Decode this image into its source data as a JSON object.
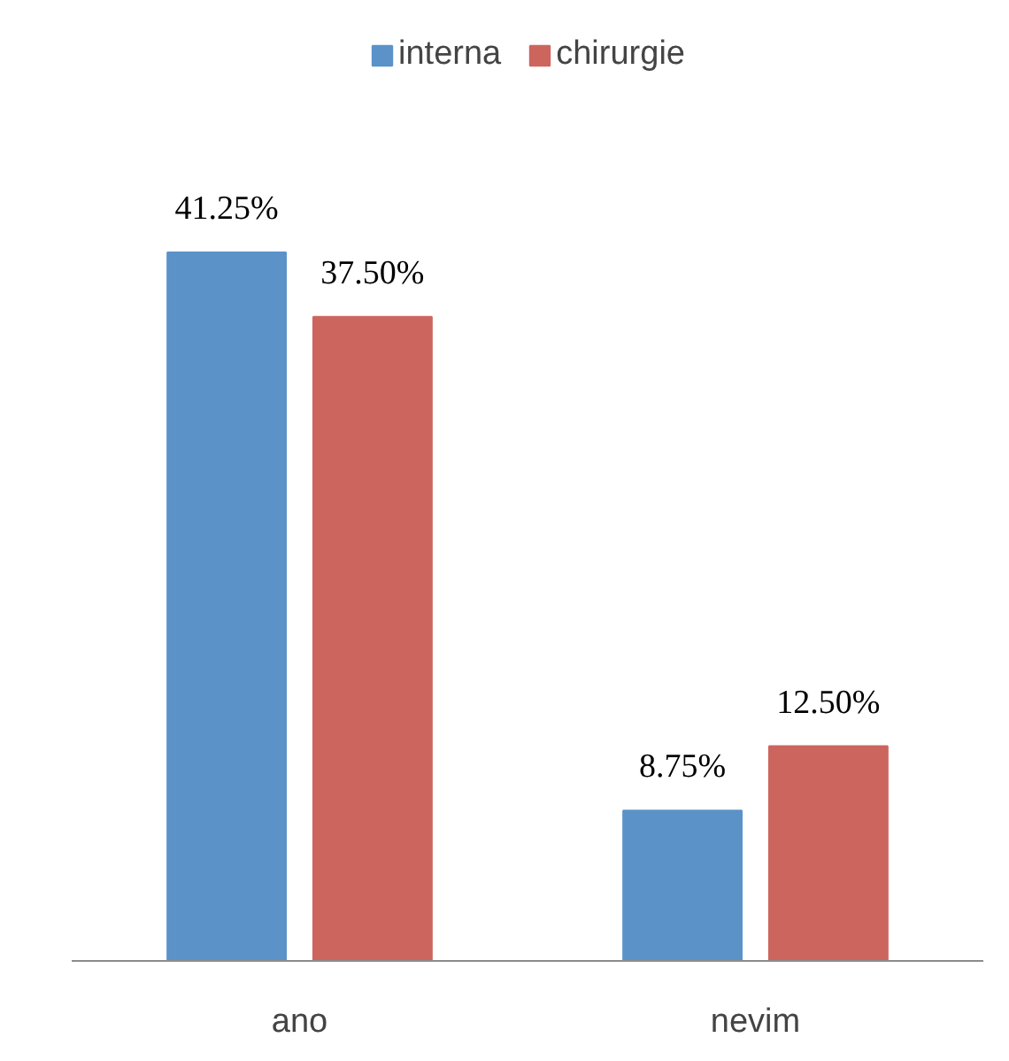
{
  "chart_data": {
    "type": "bar",
    "categories": [
      "ano",
      "nevim"
    ],
    "series": [
      {
        "name": "interna",
        "color": "#5b93c9",
        "values": [
          41.25,
          8.75
        ],
        "value_labels": [
          "41.25%",
          "8.75%"
        ]
      },
      {
        "name": "chirurgie",
        "color": "#cd655f",
        "values": [
          37.5,
          12.5
        ],
        "value_labels": [
          "37.50%",
          "12.50%"
        ]
      }
    ],
    "legend": "top",
    "grid": false
  }
}
